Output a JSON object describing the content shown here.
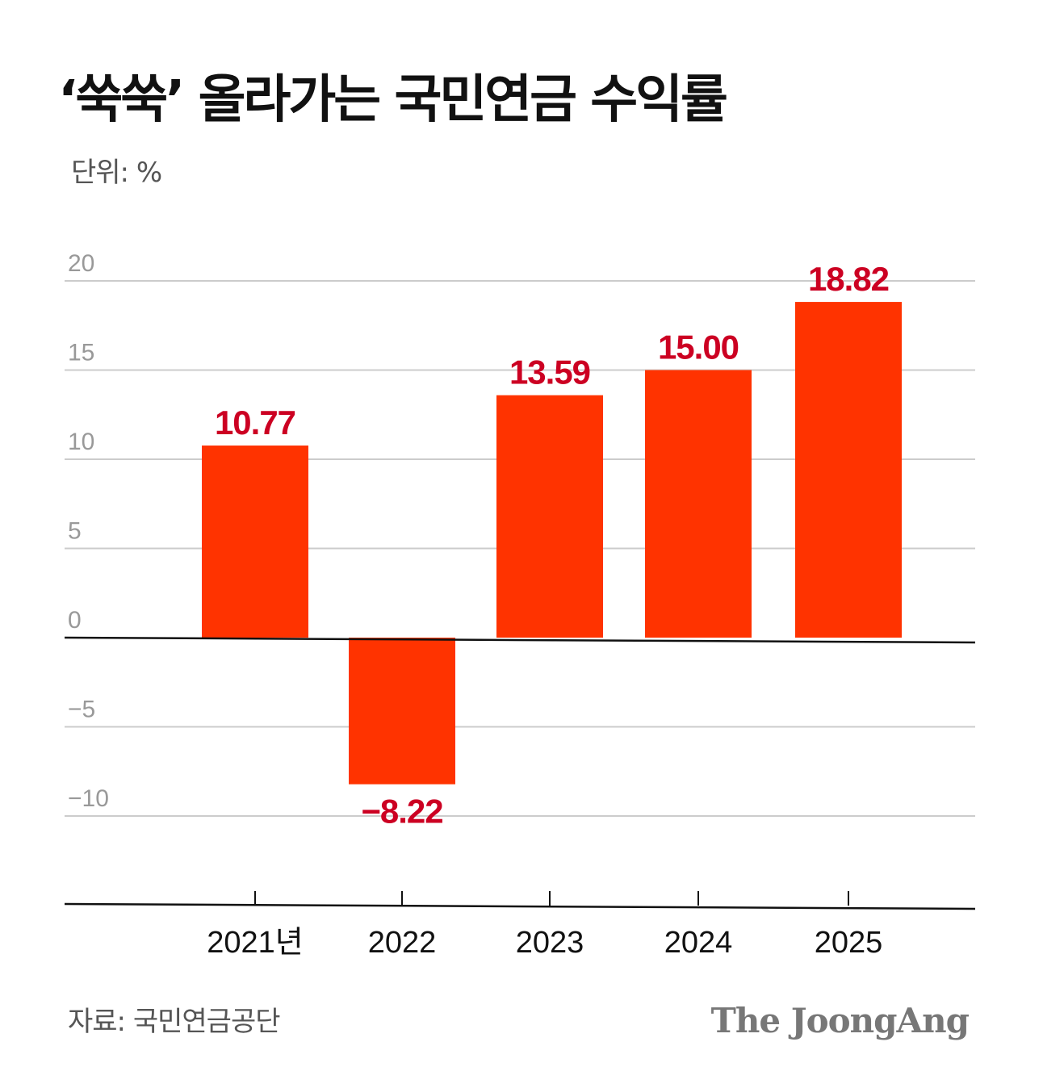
{
  "title": "‘쑥쑥’ 올라가는 국민연금 수익률",
  "unit_label": "단위: %",
  "source_label": "자료: 국민연금공단",
  "logo_text": "The JoongAng",
  "colors": {
    "bar": "#ff3300",
    "value_label": "#cc0022",
    "grid": "#cccccc",
    "axis": "#111111",
    "tick_label": "#999999"
  },
  "chart_data": {
    "type": "bar",
    "title": "‘쑥쑥’ 올라가는 국민연금 수익률",
    "ylabel": "단위: %",
    "xlabel": "",
    "categories": [
      "2021년",
      "2022",
      "2023",
      "2024",
      "2025"
    ],
    "values": [
      10.77,
      -8.22,
      13.59,
      15.0,
      18.82
    ],
    "value_labels": [
      "10.77",
      "−8.22",
      "13.59",
      "15.00",
      "18.82"
    ],
    "ylim": [
      -15,
      20
    ],
    "yticks": [
      20,
      15,
      10,
      5,
      0,
      -5,
      -10
    ],
    "ytick_labels": [
      "20",
      "15",
      "10",
      "5",
      "0",
      "−5",
      "−10"
    ],
    "grid": true,
    "legend": "none"
  }
}
